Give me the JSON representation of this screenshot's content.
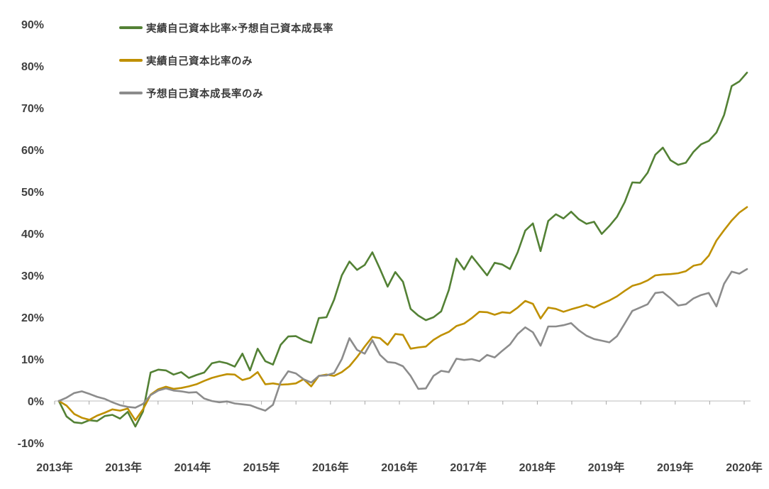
{
  "chart_data": {
    "type": "line",
    "title": "",
    "background": "#FFFFFF",
    "legend_position": "top-left-inside",
    "grid": "horizontal line at 0% only, no other gridlines",
    "axis": {
      "text_color": "#404040",
      "line_color": "#C9C9C9",
      "tick_color": "#A6A6A6"
    },
    "x_axis": {
      "labels": [
        "2013年",
        "2013年",
        "2014年",
        "2015年",
        "2016年",
        "2016年",
        "2017年",
        "2018年",
        "2019年",
        "2019年",
        "2020年"
      ],
      "points_per_series": 91,
      "x_description": "91 evenly spaced points (estimated monthly); one axis label every 9 points"
    },
    "y_axis": {
      "min": -10,
      "max": 90,
      "ticks": [
        {
          "label": "90%",
          "value": 90
        },
        {
          "label": "80%",
          "value": 80
        },
        {
          "label": "70%",
          "value": 70
        },
        {
          "label": "60%",
          "value": 60
        },
        {
          "label": "50%",
          "value": 50
        },
        {
          "label": "40%",
          "value": 40
        },
        {
          "label": "30%",
          "value": 30
        },
        {
          "label": "20%",
          "value": 20
        },
        {
          "label": "10%",
          "value": 10
        },
        {
          "label": "0%",
          "value": 0
        },
        {
          "label": "-10%",
          "value": -10
        }
      ]
    },
    "series": [
      {
        "name": "実績自己資本比率×予想自己資本成長率",
        "color": "#538135",
        "values": [
          0,
          -3.7,
          -5.1,
          -5.3,
          -4.6,
          -4.8,
          -3.6,
          -3.3,
          -4.2,
          -2.6,
          -6.1,
          -2.5,
          6.8,
          7.5,
          7.3,
          6.3,
          6.9,
          5.5,
          6.2,
          6.8,
          9.0,
          9.4,
          9.0,
          8.2,
          11.3,
          7.3,
          12.5,
          9.5,
          8.7,
          13.4,
          15.4,
          15.5,
          14.5,
          13.9,
          19.8,
          20.0,
          24.2,
          30.0,
          33.3,
          31.3,
          32.5,
          35.5,
          31.5,
          27.3,
          30.8,
          28.5,
          22.0,
          20.4,
          19.3,
          20.0,
          21.4,
          26.5,
          34.0,
          31.4,
          34.6,
          32.3,
          30.0,
          33.0,
          32.6,
          31.5,
          35.5,
          40.7,
          42.4,
          35.8,
          43.0,
          44.6,
          43.6,
          45.2,
          43.4,
          42.3,
          42.8,
          39.9,
          41.8,
          44.0,
          47.5,
          52.2,
          52.1,
          54.5,
          58.8,
          60.5,
          57.5,
          56.4,
          56.9,
          59.5,
          61.3,
          62.1,
          64.1,
          68.3,
          75.2,
          76.3,
          78.4
        ]
      },
      {
        "name": "実績自己資本比率のみ",
        "color": "#BF9000",
        "values": [
          0,
          -1.1,
          -3.1,
          -4.0,
          -4.5,
          -3.5,
          -2.8,
          -2.0,
          -2.3,
          -1.8,
          -4.6,
          -2.0,
          1.5,
          2.8,
          3.4,
          2.9,
          3.1,
          3.5,
          4.0,
          4.8,
          5.5,
          6.0,
          6.4,
          6.3,
          5.0,
          5.5,
          6.9,
          4.0,
          4.2,
          3.9,
          4.0,
          4.2,
          5.2,
          3.5,
          6.0,
          6.3,
          6.0,
          6.9,
          8.3,
          10.5,
          13.0,
          15.3,
          15.0,
          13.4,
          16.0,
          15.8,
          12.5,
          12.8,
          13.0,
          14.6,
          15.7,
          16.5,
          17.9,
          18.5,
          19.8,
          21.3,
          21.2,
          20.6,
          21.2,
          21.0,
          22.3,
          23.9,
          23.2,
          19.7,
          22.3,
          22.0,
          21.3,
          21.9,
          22.4,
          23.0,
          22.3,
          23.2,
          24.0,
          25.0,
          26.3,
          27.5,
          28.0,
          28.8,
          30.0,
          30.2,
          30.3,
          30.5,
          31.0,
          32.3,
          32.7,
          34.7,
          38.3,
          40.8,
          43.1,
          45.0,
          46.3
        ]
      },
      {
        "name": "予想自己資本成長率のみ",
        "color": "#8C8C8C",
        "values": [
          0,
          0.8,
          1.9,
          2.3,
          1.7,
          1.0,
          0.5,
          -0.3,
          -1.0,
          -1.4,
          -1.6,
          -0.7,
          1.4,
          2.5,
          3.0,
          2.5,
          2.3,
          2.0,
          2.1,
          0.6,
          0.0,
          -0.3,
          -0.1,
          -0.6,
          -0.8,
          -1.0,
          -1.7,
          -2.3,
          -0.9,
          4.5,
          7.1,
          6.6,
          5.2,
          4.4,
          6.0,
          6.1,
          6.7,
          10.0,
          15.0,
          12.2,
          11.3,
          14.5,
          11.0,
          9.3,
          9.1,
          8.3,
          6.0,
          2.9,
          3.0,
          6.0,
          7.2,
          6.9,
          10.1,
          9.8,
          10.0,
          9.5,
          11.0,
          10.4,
          12.0,
          13.5,
          16.0,
          17.6,
          16.4,
          13.2,
          17.8,
          17.8,
          18.1,
          18.6,
          16.9,
          15.6,
          14.8,
          14.4,
          14.0,
          15.5,
          18.5,
          21.5,
          22.3,
          23.1,
          25.8,
          26.0,
          24.5,
          22.8,
          23.1,
          24.5,
          25.3,
          25.8,
          22.6,
          28.0,
          30.9,
          30.4,
          31.5
        ]
      }
    ]
  }
}
